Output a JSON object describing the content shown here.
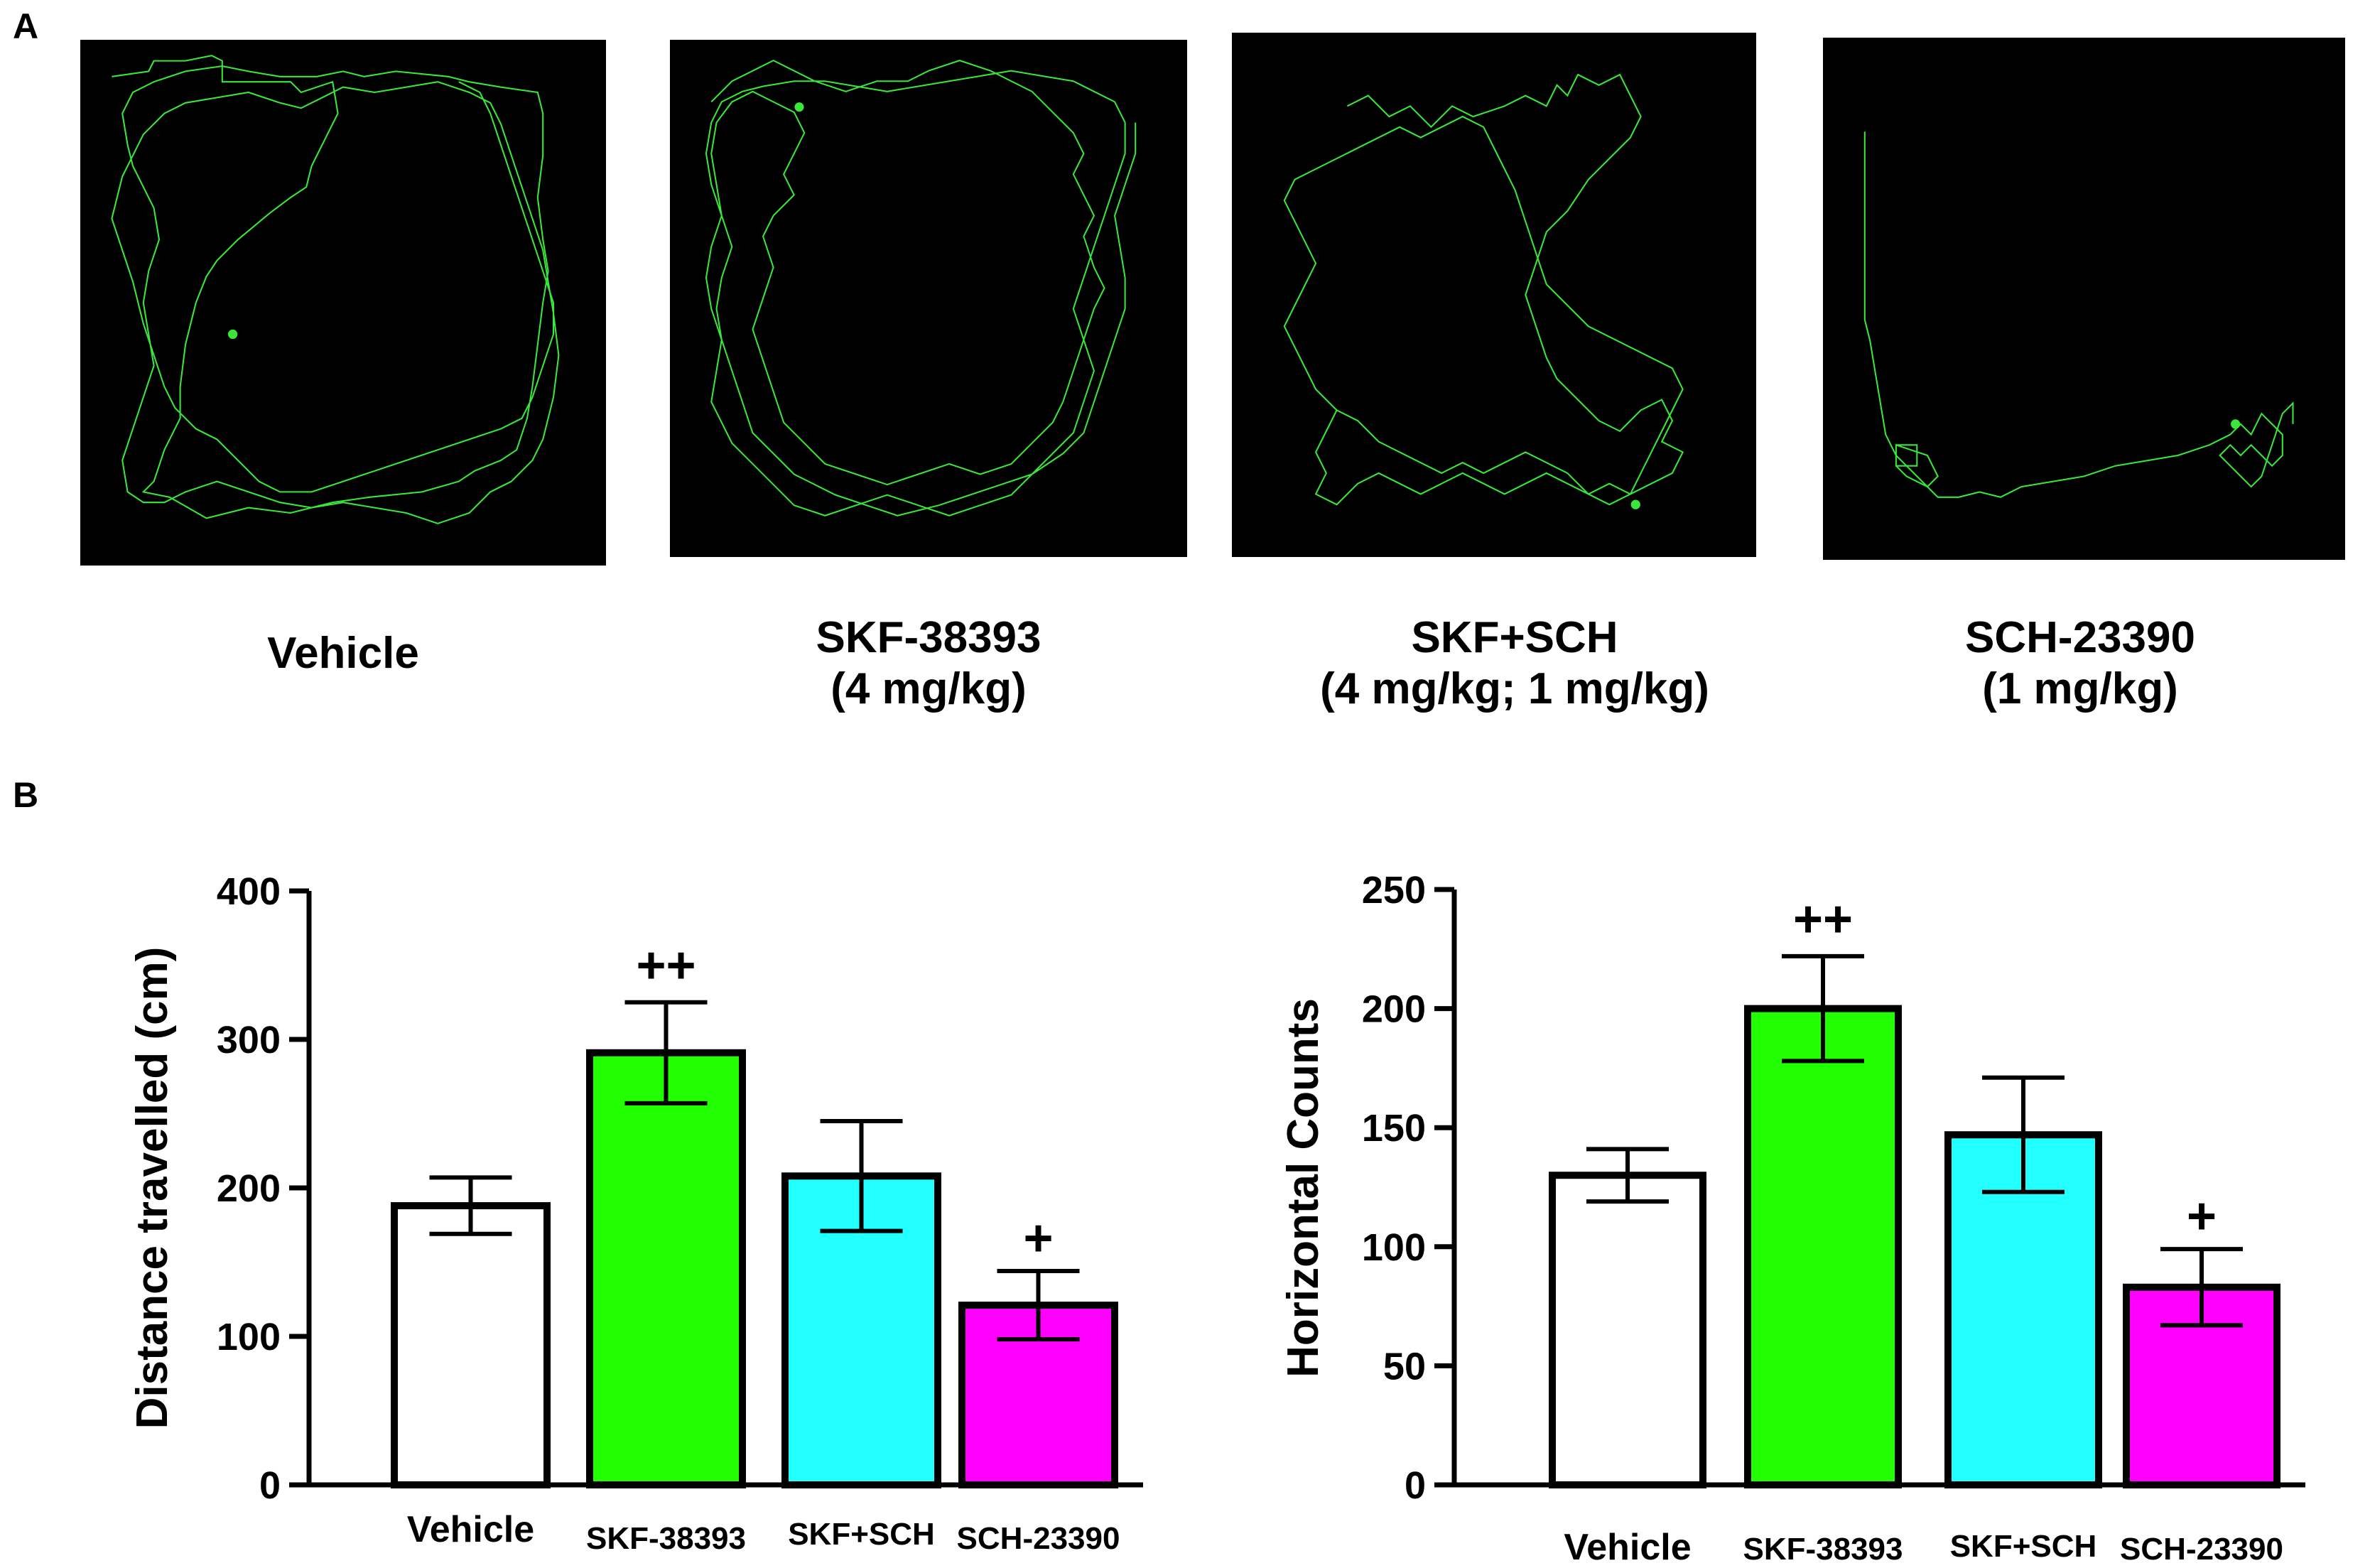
{
  "panel_labels": {
    "a": "A",
    "b": "B"
  },
  "arenas": [
    {
      "caption_line1": "Vehicle",
      "caption_line2": ""
    },
    {
      "caption_line1": "SKF-38393",
      "caption_line2": "(4 mg/kg)"
    },
    {
      "caption_line1": "SKF+SCH",
      "caption_line2": "(4 mg/kg; 1 mg/kg)"
    },
    {
      "caption_line1": "SCH-23390",
      "caption_line2": "(1 mg/kg)"
    }
  ],
  "colors": {
    "track": "#39e639",
    "arena_bg": "#000000",
    "vehicle": "#ffffff",
    "skf": "#22ff00",
    "skf_sch": "#22ffff",
    "sch": "#ff00ff"
  },
  "chart_data": [
    {
      "type": "bar",
      "categories": [
        "Vehicle",
        "SKF-38393",
        "SKF+SCH",
        "SCH-23390"
      ],
      "values": [
        188,
        291,
        208,
        121
      ],
      "errors": [
        19,
        34,
        37,
        23
      ],
      "annotations": [
        "",
        "++",
        "",
        "+"
      ],
      "colors": [
        "#ffffff",
        "#22ff00",
        "#22ffff",
        "#ff00ff"
      ],
      "ylabel": "Distance travelled (cm)",
      "xlabel": "",
      "ylim": [
        0,
        400
      ],
      "yticks": [
        0,
        100,
        200,
        300,
        400
      ]
    },
    {
      "type": "bar",
      "categories": [
        "Vehicle",
        "SKF-38393",
        "SKF+SCH",
        "SCH-23390"
      ],
      "values": [
        130,
        200,
        147,
        83
      ],
      "errors": [
        11,
        22,
        24,
        16
      ],
      "annotations": [
        "",
        "++",
        "",
        "+"
      ],
      "colors": [
        "#ffffff",
        "#22ff00",
        "#22ffff",
        "#ff00ff"
      ],
      "ylabel": "Horizontal Counts",
      "xlabel": "",
      "ylim": [
        0,
        250
      ],
      "yticks": [
        0,
        50,
        100,
        150,
        200,
        250
      ]
    }
  ]
}
